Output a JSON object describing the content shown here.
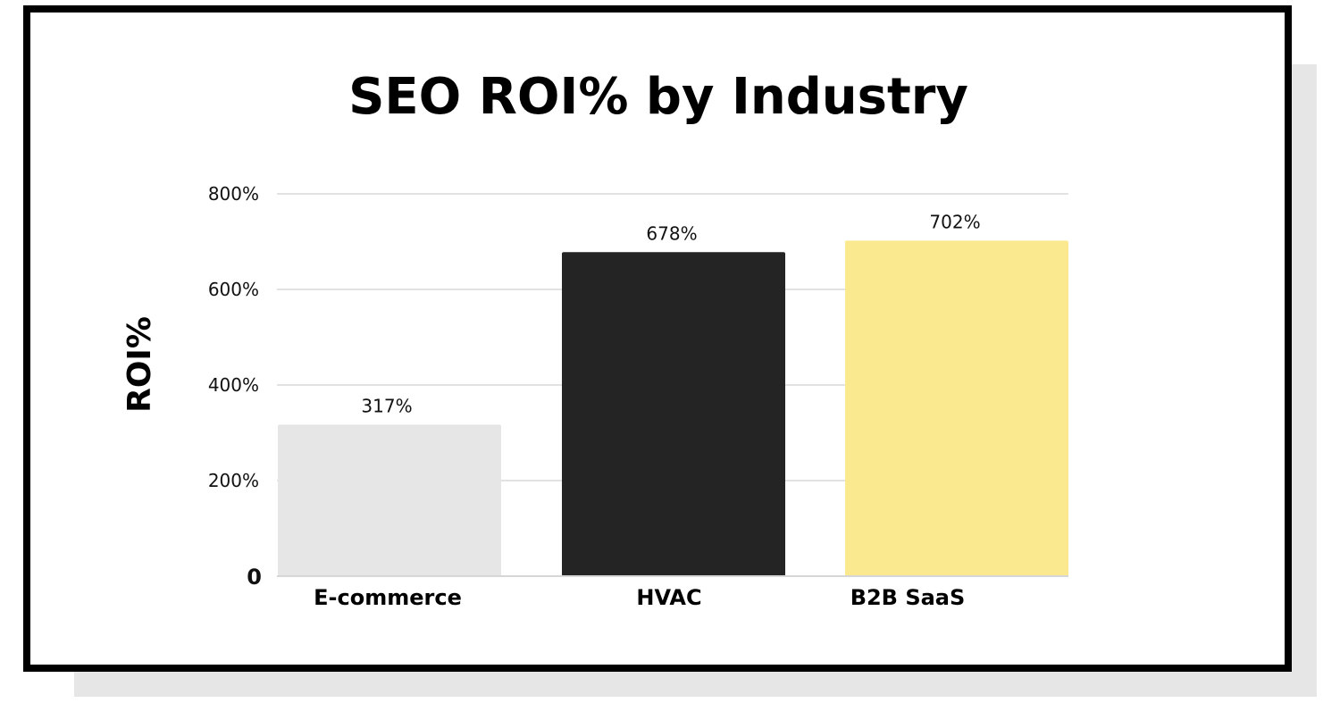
{
  "chart_data": {
    "type": "bar",
    "title": "SEO ROI% by Industry",
    "xlabel": "",
    "ylabel": "ROI%",
    "categories": [
      "E-commerce",
      "HVAC",
      "B2B SaaS"
    ],
    "values": [
      317,
      678,
      702
    ],
    "value_labels": [
      "317%",
      "678%",
      "702%"
    ],
    "ylim": [
      0,
      800
    ],
    "yticks": [
      0,
      200,
      400,
      600,
      800
    ],
    "ytick_labels": [
      "0",
      "200%",
      "400%",
      "600%",
      "800%"
    ],
    "bar_colors": [
      "#e6e6e6",
      "#242424",
      "#fae98e"
    ],
    "grid": true,
    "legend": "none"
  }
}
